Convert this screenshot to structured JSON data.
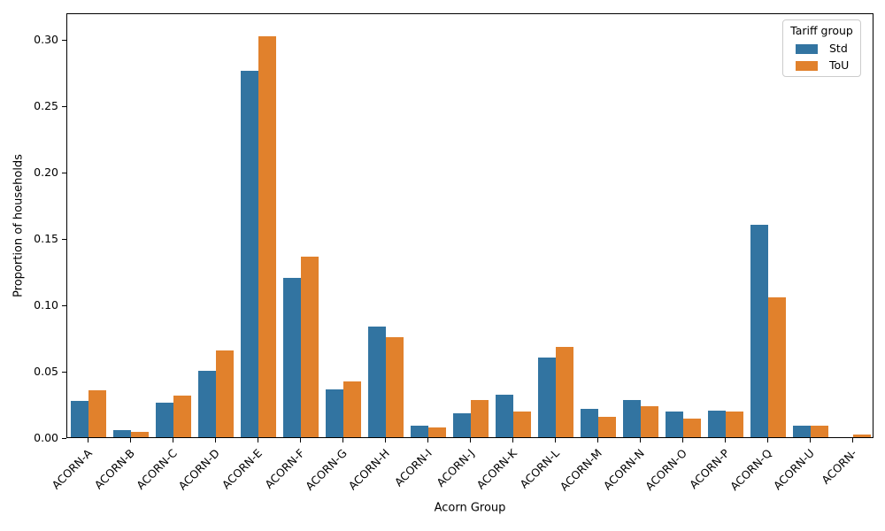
{
  "figure": {
    "xlabel": "Acorn Group",
    "ylabel": "Proportion of households"
  },
  "legend": {
    "title": "Tariff group",
    "entries": [
      {
        "label": "Std",
        "color": "#3274a1"
      },
      {
        "label": "ToU",
        "color": "#e1812c"
      }
    ]
  },
  "chart_data": {
    "type": "bar",
    "title": "",
    "xlabel": "Acorn Group",
    "ylabel": "Proportion of households",
    "categories": [
      "ACORN-A",
      "ACORN-B",
      "ACORN-C",
      "ACORN-D",
      "ACORN-E",
      "ACORN-F",
      "ACORN-G",
      "ACORN-H",
      "ACORN-I",
      "ACORN-J",
      "ACORN-K",
      "ACORN-L",
      "ACORN-M",
      "ACORN-N",
      "ACORN-O",
      "ACORN-P",
      "ACORN-Q",
      "ACORN-U",
      "ACORN-"
    ],
    "series": [
      {
        "name": "Std",
        "color": "#3274a1",
        "values": [
          0.027,
          0.005,
          0.026,
          0.05,
          0.276,
          0.12,
          0.036,
          0.083,
          0.009,
          0.018,
          0.032,
          0.06,
          0.021,
          0.028,
          0.019,
          0.02,
          0.16,
          0.009,
          0.0
        ]
      },
      {
        "name": "ToU",
        "color": "#e1812c",
        "values": [
          0.035,
          0.004,
          0.031,
          0.065,
          0.302,
          0.136,
          0.042,
          0.075,
          0.007,
          0.028,
          0.019,
          0.068,
          0.015,
          0.023,
          0.014,
          0.019,
          0.105,
          0.009,
          0.002
        ]
      }
    ],
    "ylim": [
      0,
      0.32
    ],
    "yticks": [
      0.0,
      0.05,
      0.1,
      0.15,
      0.2,
      0.25,
      0.3
    ],
    "ytick_decimals": 2,
    "xtick_rotation": 45,
    "grid": false,
    "legend_position": "upper right",
    "legend_title": "Tariff group"
  }
}
